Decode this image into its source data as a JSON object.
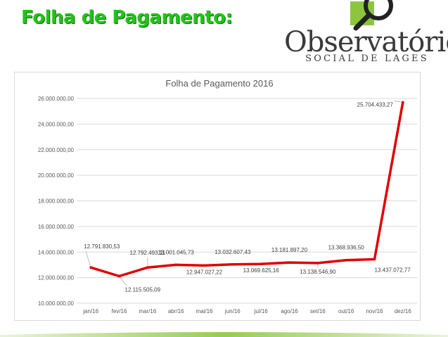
{
  "slide": {
    "title": "Folha de Pagamento:",
    "logo_name": "Observatório",
    "logo_subtitle": "SOCIAL DE LAGES"
  },
  "colors": {
    "title_green": "#22c418",
    "line_red": "#e00000",
    "accent_green": "#8cc63f"
  },
  "chart_data": {
    "type": "line",
    "title": "Folha de Pagamento 2016",
    "categories": [
      "jan/16",
      "fev/16",
      "mar/16",
      "abr/16",
      "mai/16",
      "jun/16",
      "jul/16",
      "ago/16",
      "set/16",
      "out/16",
      "nov/16",
      "dez/16"
    ],
    "values": [
      12791830.53,
      12115505.09,
      12792493.11,
      13001045.73,
      12947027.22,
      13032607.43,
      13069625.16,
      13181897.2,
      13138546.9,
      13368936.5,
      13437072.77,
      25704433.27
    ],
    "data_labels": [
      "12.791.830,53",
      "12.115.505,09",
      "12.792.493,11",
      "13.001.045,73",
      "12.947.027,22",
      "13.032.607,43",
      "13.069.625,16",
      "13.181.897,20",
      "13.138.546,90",
      "13.368.936,50",
      "13.437.072,77",
      "25.704.433,27"
    ],
    "ylim": [
      10000000,
      26000000
    ],
    "yticks": [
      10000000,
      12000000,
      14000000,
      16000000,
      18000000,
      20000000,
      22000000,
      24000000,
      26000000
    ],
    "ytick_labels": [
      "10.000.000,00",
      "12.000.000,00",
      "14.000.000,00",
      "16.000.000,00",
      "18.000.000,00",
      "20.000.000,00",
      "22.000.000,00",
      "24.000.000,00",
      "26.000.000,00"
    ],
    "xlabel": "",
    "ylabel": "",
    "grid": true,
    "legend": "none"
  }
}
